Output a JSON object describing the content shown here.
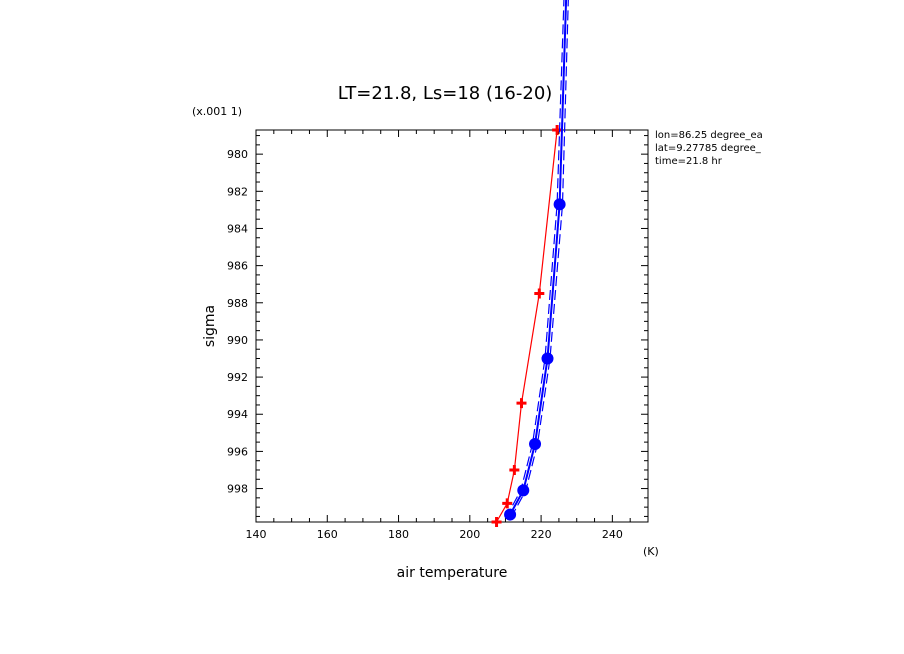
{
  "chart_data": {
    "type": "line",
    "title": "LT=21.8, Ls=18 (16-20)",
    "xlabel": "air temperature",
    "ylabel": "sigma",
    "x_unit": "(K)",
    "y_scale_note": "(x.001 1)",
    "xlim": [
      140,
      250
    ],
    "ylim": [
      978.7,
      999.8
    ],
    "y_inverted": true,
    "x_ticks": [
      140,
      160,
      180,
      200,
      220,
      240
    ],
    "y_ticks": [
      980,
      982,
      984,
      986,
      988,
      990,
      992,
      994,
      996,
      998
    ],
    "grid": false,
    "annotations": [
      "lon=86.25 degree_ea",
      "lat=9.27785 degree_",
      "time=21.8 hr"
    ],
    "series": [
      {
        "color": "#ff0000",
        "marker": "plus",
        "line_style": "solid",
        "points": [
          [
            224.5,
            978.7
          ],
          [
            219.5,
            987.5
          ],
          [
            214.5,
            993.4
          ],
          [
            212.5,
            997.0
          ],
          [
            210.5,
            998.8
          ],
          [
            207.5,
            999.8
          ]
        ]
      },
      {
        "color": "#0000ff",
        "marker": "circle",
        "line_style": "solid",
        "points": [
          [
            227.3,
            970.0
          ],
          [
            225.2,
            982.7
          ],
          [
            221.8,
            991.0
          ],
          [
            218.3,
            995.6
          ],
          [
            215.0,
            998.1
          ],
          [
            211.3,
            999.4
          ]
        ]
      },
      {
        "color": "#0000ff",
        "marker": "none",
        "line_style": "dashed",
        "points": [
          [
            227.9,
            970.0
          ],
          [
            226.0,
            982.7
          ],
          [
            222.5,
            991.0
          ],
          [
            219.0,
            995.6
          ],
          [
            215.7,
            998.1
          ],
          [
            212.0,
            999.4
          ]
        ]
      },
      {
        "color": "#0000ff",
        "marker": "none",
        "line_style": "dashed",
        "points": [
          [
            226.7,
            970.0
          ],
          [
            224.5,
            982.7
          ],
          [
            221.1,
            991.0
          ],
          [
            217.6,
            995.6
          ],
          [
            214.3,
            998.1
          ],
          [
            210.6,
            999.4
          ]
        ]
      }
    ]
  }
}
